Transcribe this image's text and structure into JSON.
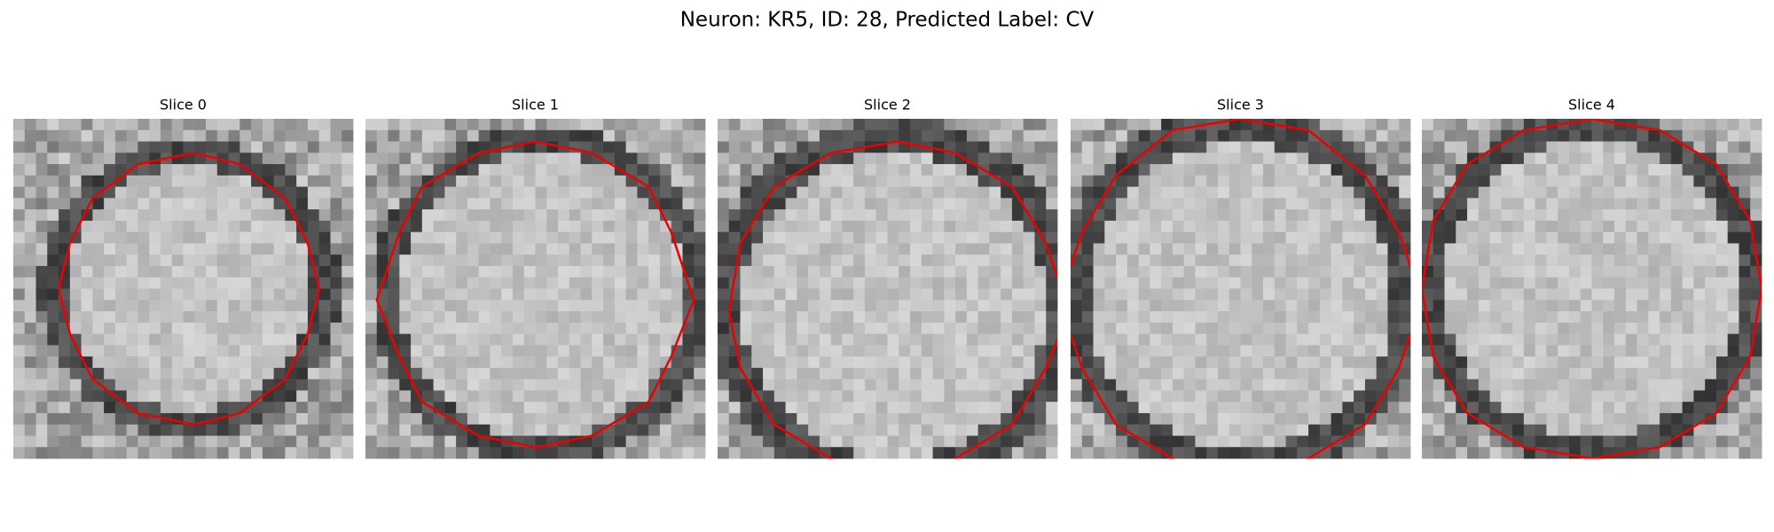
{
  "title": "Neuron: KR5, ID: 28, Predicted Label: CV",
  "panels": [
    {
      "title": "Slice 0"
    },
    {
      "title": "Slice 1"
    },
    {
      "title": "Slice 2"
    },
    {
      "title": "Slice 3"
    },
    {
      "title": "Slice 4"
    }
  ]
}
